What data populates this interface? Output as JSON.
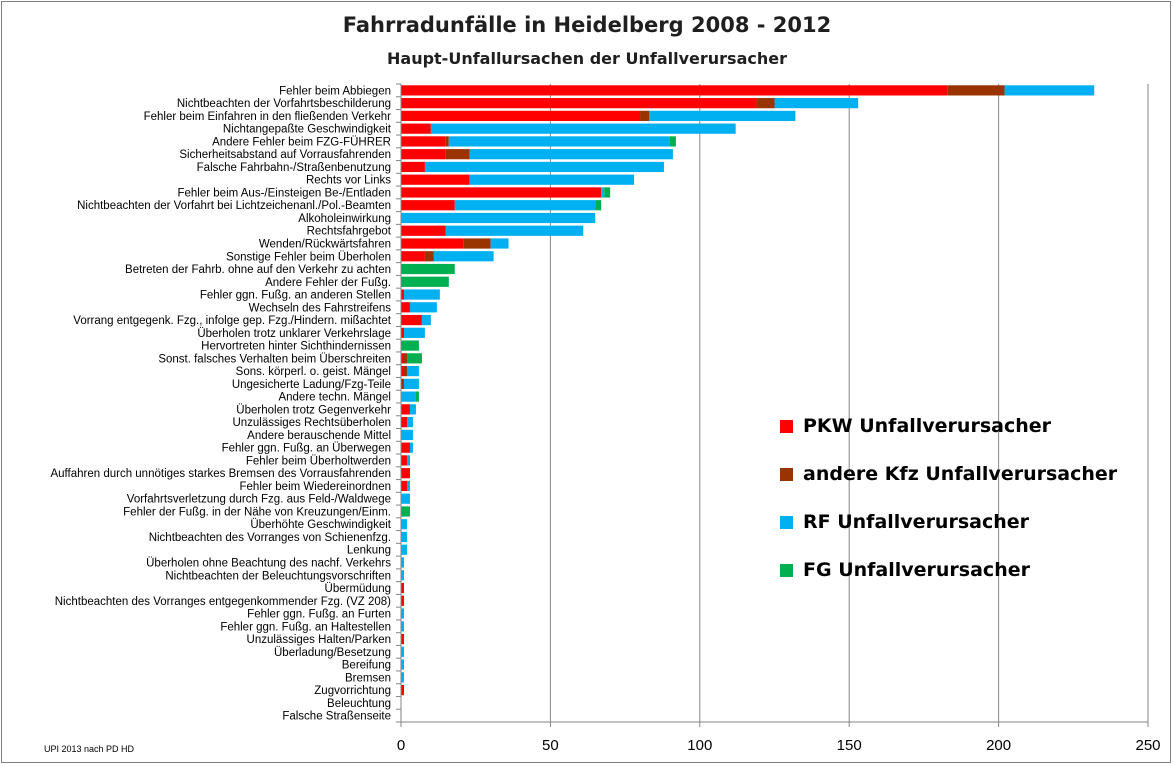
{
  "chart_data": {
    "type": "bar",
    "orientation": "horizontal",
    "stacked": true,
    "title": "Fahrradunfälle in Heidelberg 2008 - 2012",
    "subtitle": "Haupt-Unfallursachen der Unfallverursacher",
    "footnote": "UPI  2013 nach PD  HD",
    "xlim": [
      0,
      250
    ],
    "xticks": [
      "0",
      "50",
      "100",
      "150",
      "200",
      "250"
    ],
    "grid": true,
    "legend_position": "right",
    "categories": [
      "Fehler beim Abbiegen",
      "Nichtbeachten der Vorfahrtsbeschilderung",
      "Fehler beim Einfahren in den fließenden Verkehr",
      "Nichtangepaßte Geschwindigkeit",
      "Andere Fehler beim FZG-FÜHRER",
      "Sicherheitsabstand auf Vorrausfahrenden",
      "Falsche Fahrbahn-/Straßenbenutzung",
      "Rechts vor Links",
      "Fehler beim Aus-/Einsteigen Be-/Entladen",
      "Nichtbeachten der Vorfahrt bei Lichtzeichenanl./Pol.-Beamten",
      "Alkoholeinwirkung",
      "Rechtsfahrgebot",
      "Wenden/Rückwärtsfahren",
      "Sonstige Fehler beim Überholen",
      "Betreten der Fahrb. ohne auf den Verkehr zu achten",
      "Andere Fehler der Fußg.",
      "Fehler ggn. Fußg. an anderen Stellen",
      "Wechseln des Fahrstreifens",
      "Vorrang  entgegenk. Fzg., infolge gep. Fzg./Hindern. mißachtet",
      "Überholen trotz unklarer Verkehrslage",
      "Hervortreten hinter Sichthindernissen",
      "Sonst. falsches Verhalten beim Überschreiten",
      "Sons. körperl. o. geist. Mängel",
      "Ungesicherte Ladung/Fzg-Teile",
      "Andere techn. Mängel",
      "Überholen trotz Gegenverkehr",
      "Unzulässiges Rechtsüberholen",
      "Andere berauschende Mittel",
      "Fehler ggn. Fußg. an Überwegen",
      "Fehler beim Überholtwerden",
      "Auffahren durch unnötiges starkes Bremsen des Vorrausfahrenden",
      "Fehler beim Wiedereinordnen",
      "Vorfahrtsverletzung durch Fzg. aus Feld-/Waldwege",
      "Fehler der Fußg. in der Nähe von Kreuzungen/Einm.",
      "Überhöhte Geschwindigkeit",
      "Nichtbeachten des Vorranges von Schienenfzg.",
      "Lenkung",
      "Überholen ohne Beachtung des nachf. Verkehrs",
      "Nichtbeachten der Beleuchtungsvorschriften",
      "Übermüdung",
      "Nichtbeachten des Vorranges entgegenkommender Fzg. (VZ 208)",
      "Fehler ggn. Fußg. an Furten",
      "Fehler ggn. Fußg. an Haltestellen",
      "Unzulässiges Halten/Parken",
      "Überladung/Besetzung",
      "Bereifung",
      "Bremsen",
      "Zugvorrichtung",
      "Beleuchtung",
      "Falsche Straßenseite"
    ],
    "series": [
      {
        "name": "PKW Unfallverursacher",
        "color": "#ff0000",
        "values": [
          183,
          119,
          80,
          10,
          15,
          15,
          8,
          23,
          67,
          18,
          0,
          15,
          21,
          8,
          0,
          0,
          1,
          3,
          7,
          1,
          0,
          1,
          1,
          0,
          0,
          3,
          2,
          0,
          3,
          2,
          3,
          2,
          0,
          0,
          0,
          0,
          0,
          0,
          0,
          1,
          1,
          0,
          0,
          1,
          0,
          0,
          0,
          1,
          0,
          0
        ]
      },
      {
        "name": "andere Kfz Unfallverursacher",
        "color": "#993300",
        "values": [
          19,
          6,
          3,
          0,
          1,
          8,
          0,
          0,
          0,
          0,
          0,
          0,
          9,
          3,
          0,
          0,
          0,
          0,
          0,
          0,
          0,
          1,
          1,
          1,
          0,
          0,
          0,
          0,
          0,
          0,
          0,
          0,
          0,
          0,
          0,
          0,
          0,
          0,
          0,
          0,
          0,
          0,
          0,
          0,
          0,
          0,
          0,
          0,
          0,
          0
        ]
      },
      {
        "name": "RF  Unfallverursacher",
        "color": "#00b0f0",
        "values": [
          30,
          28,
          49,
          102,
          74,
          68,
          80,
          55,
          1,
          47,
          65,
          46,
          6,
          20,
          0,
          0,
          12,
          9,
          3,
          7,
          0,
          0,
          4,
          5,
          5,
          2,
          2,
          4,
          1,
          1,
          0,
          1,
          3,
          0,
          2,
          2,
          2,
          1,
          1,
          0,
          0,
          1,
          1,
          0,
          1,
          1,
          1,
          0,
          0,
          0
        ]
      },
      {
        "name": "FG Unfallverursacher",
        "color": "#00b050",
        "values": [
          0,
          0,
          0,
          0,
          2,
          0,
          0,
          0,
          2,
          2,
          0,
          0,
          0,
          0,
          18,
          16,
          0,
          0,
          0,
          0,
          6,
          5,
          0,
          0,
          1,
          0,
          0,
          0,
          0,
          0,
          0,
          0,
          0,
          3,
          0,
          0,
          0,
          0,
          0,
          0,
          0,
          0,
          0,
          0,
          0,
          0,
          0,
          0,
          0,
          0
        ]
      }
    ]
  }
}
